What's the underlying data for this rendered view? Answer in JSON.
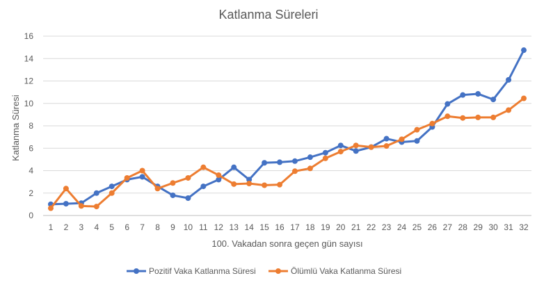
{
  "chart_data": {
    "type": "line",
    "title": "Katlanma Süreleri",
    "xlabel": "100. Vakadan sonra geçen gün sayısı",
    "ylabel": "Katlanma Süresi",
    "ylim": [
      0,
      16
    ],
    "yticks": [
      0,
      2,
      4,
      6,
      8,
      10,
      12,
      14,
      16
    ],
    "x": [
      1,
      2,
      3,
      4,
      5,
      6,
      7,
      8,
      9,
      10,
      11,
      12,
      13,
      14,
      15,
      16,
      17,
      18,
      19,
      20,
      21,
      22,
      23,
      24,
      25,
      26,
      27,
      28,
      29,
      30,
      31,
      32
    ],
    "grid": true,
    "legend_position": "bottom",
    "series": [
      {
        "name": "Pozitif Vaka Katlanma Süresi",
        "color": "#4472C4",
        "values": [
          1.0,
          1.05,
          1.1,
          2.0,
          2.6,
          3.2,
          3.45,
          2.6,
          1.8,
          1.55,
          2.6,
          3.2,
          4.3,
          3.2,
          4.7,
          4.75,
          4.85,
          5.2,
          5.6,
          6.25,
          5.75,
          6.1,
          6.85,
          6.55,
          6.65,
          7.9,
          9.95,
          10.75,
          10.85,
          10.35,
          12.1,
          14.75
        ]
      },
      {
        "name": "Ölümlü Vaka  Katlanma Süresi",
        "color": "#ED7D31",
        "values": [
          0.65,
          2.4,
          0.85,
          0.8,
          2.0,
          3.35,
          4.0,
          2.4,
          2.9,
          3.35,
          4.3,
          3.6,
          2.8,
          2.85,
          2.7,
          2.75,
          3.95,
          4.2,
          5.1,
          5.7,
          6.25,
          6.1,
          6.2,
          6.8,
          7.65,
          8.2,
          8.85,
          8.7,
          8.75,
          8.75,
          9.4,
          10.45
        ]
      }
    ]
  }
}
